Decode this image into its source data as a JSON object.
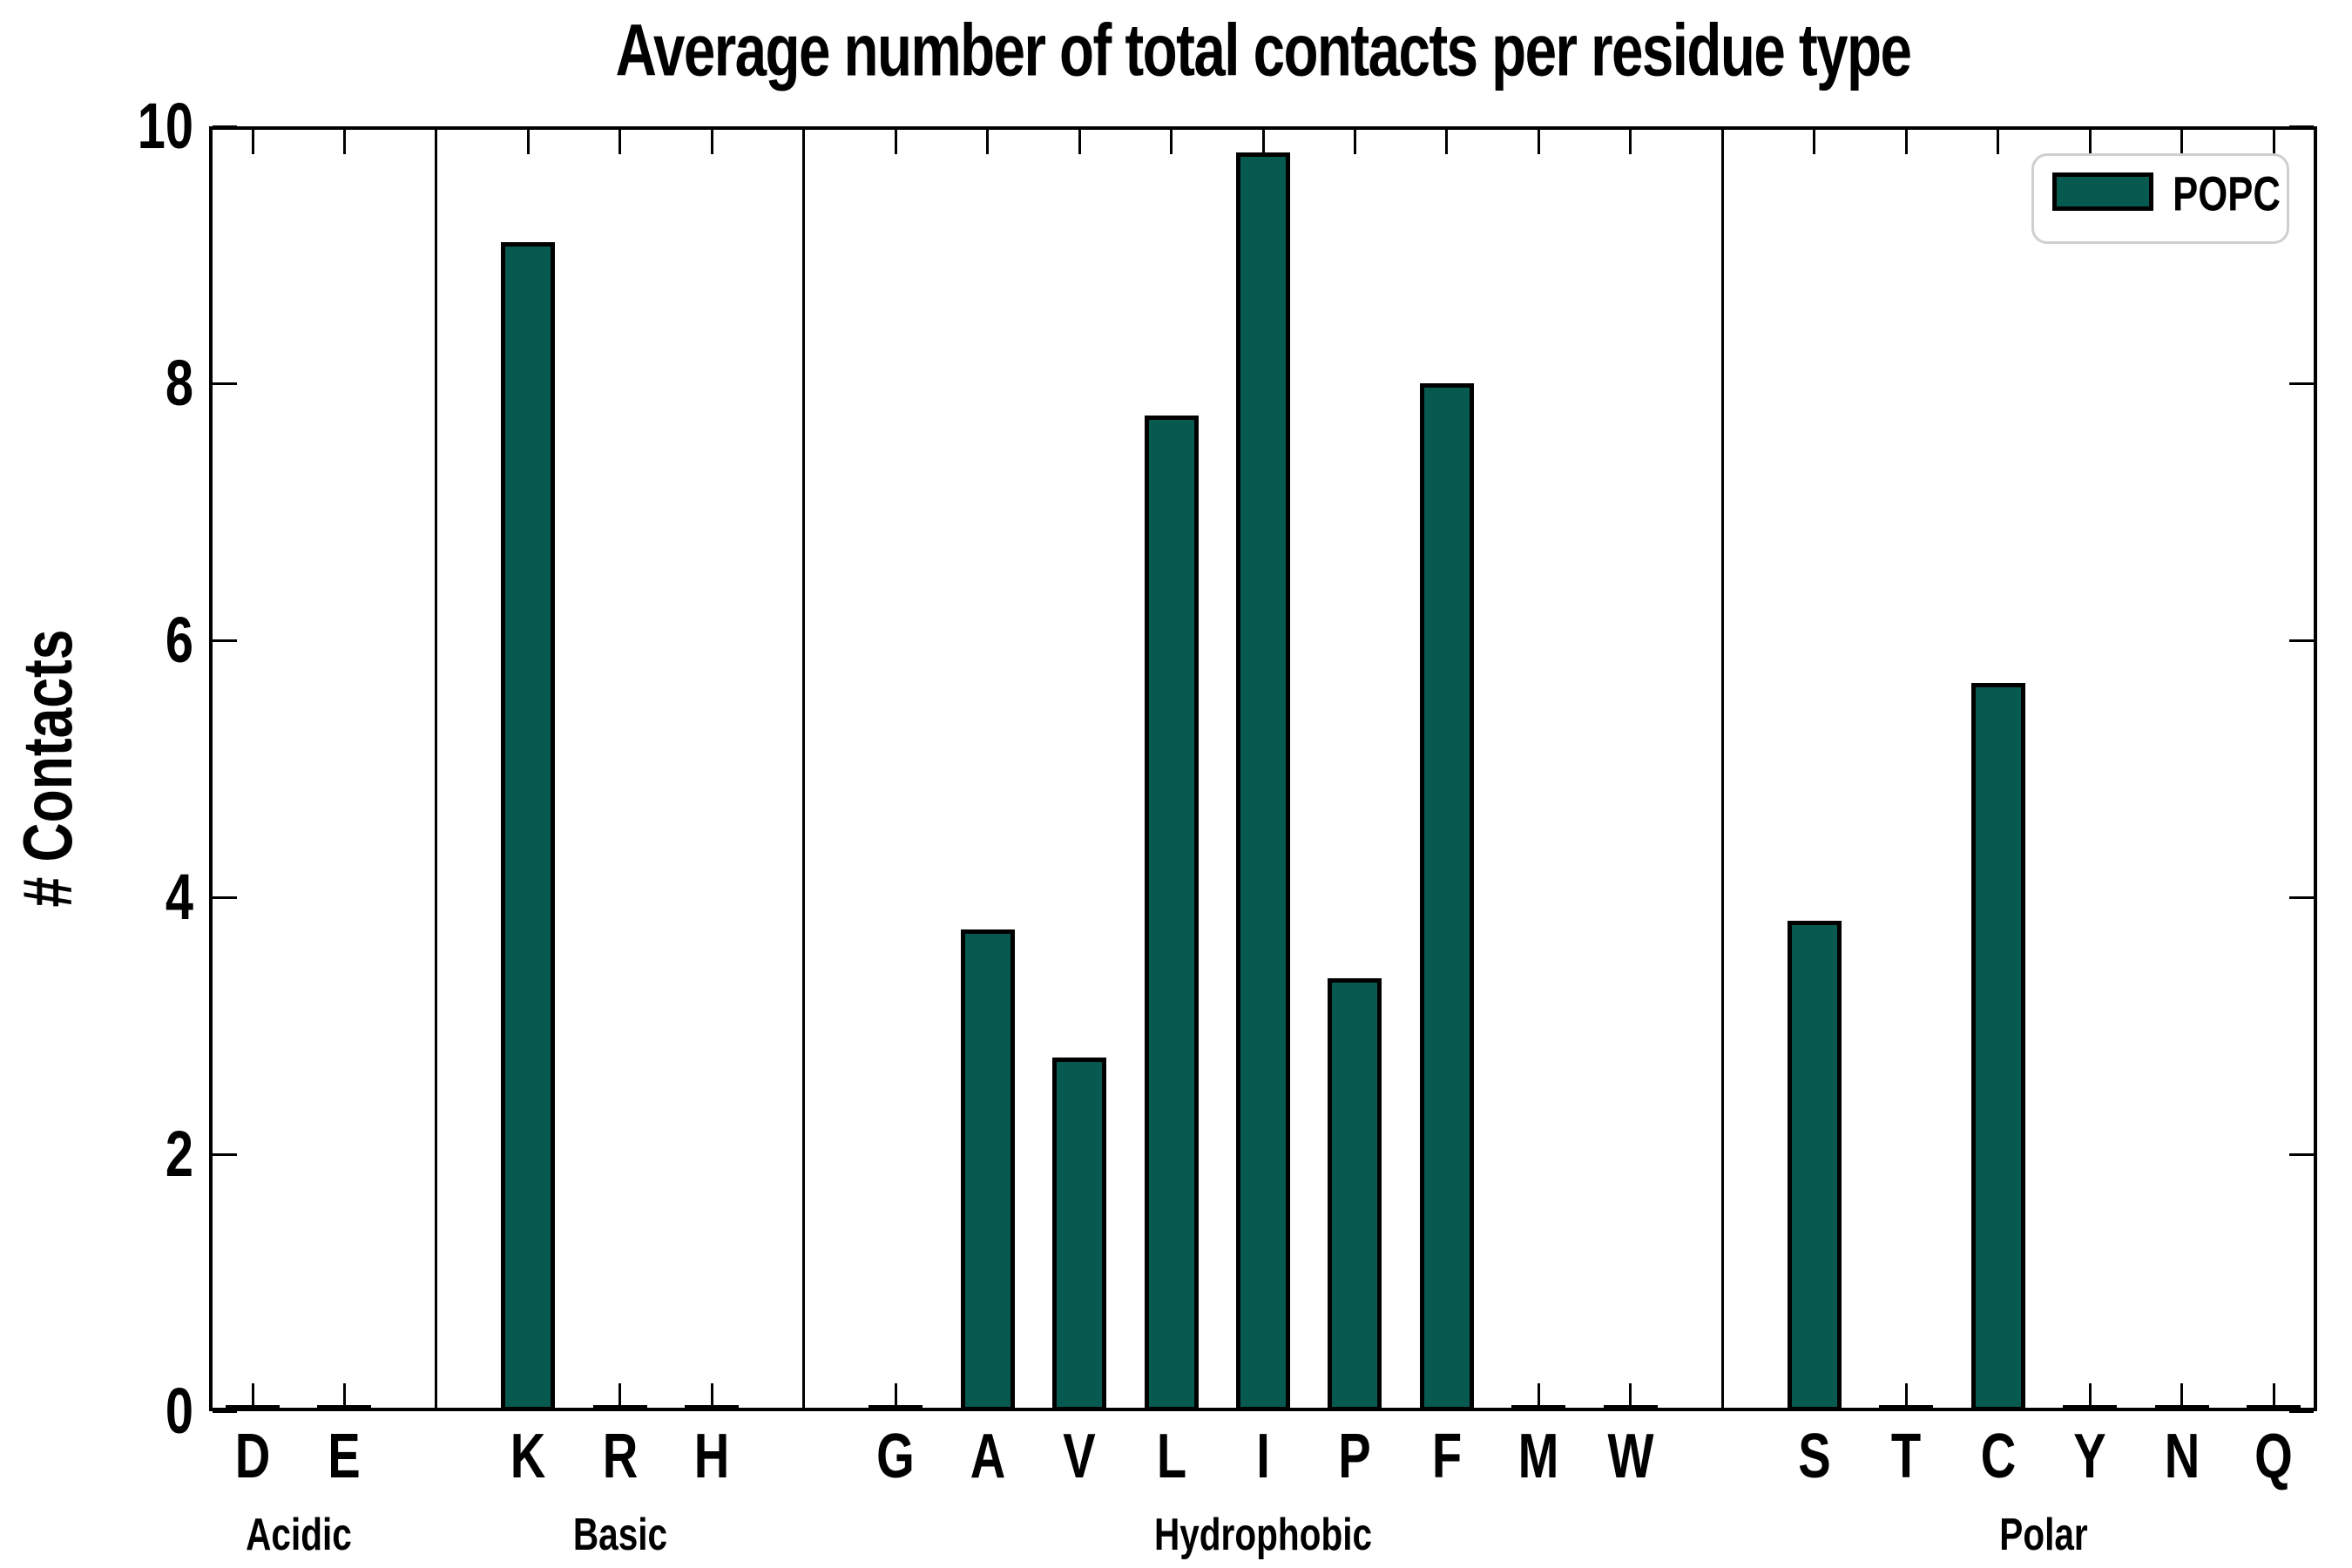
{
  "chart_data": {
    "type": "bar",
    "title": "Average number of total contacts per residue type",
    "ylabel": "# Contacts",
    "xlabel": "",
    "ylim": [
      0,
      10
    ],
    "yticks": [
      "0",
      "2",
      "4",
      "6",
      "8",
      "10"
    ],
    "grid": false,
    "legend": {
      "label": "POPC",
      "position": "upper right"
    },
    "colors": {
      "bar_fill": "#065a50",
      "bar_edge": "#000000",
      "axis": "#000000",
      "legend_border": "#cfcfcf"
    },
    "groups": [
      {
        "label": "Acidic",
        "residues": [
          "D",
          "E"
        ],
        "values": [
          0.03,
          0.03
        ]
      },
      {
        "label": "Basic",
        "residues": [
          "K",
          "R",
          "H"
        ],
        "values": [
          9.1,
          0.03,
          0.03
        ]
      },
      {
        "label": "Hydrophobic",
        "residues": [
          "G",
          "A",
          "V",
          "L",
          "I",
          "P",
          "F",
          "M",
          "W"
        ],
        "values": [
          0.03,
          3.75,
          2.75,
          7.75,
          9.8,
          3.37,
          8.0,
          0.03,
          0.03
        ]
      },
      {
        "label": "Polar",
        "residues": [
          "S",
          "T",
          "C",
          "Y",
          "N",
          "Q"
        ],
        "values": [
          3.82,
          0.03,
          5.67,
          0.03,
          0.03,
          0.03
        ]
      }
    ],
    "categories": [
      "D",
      "E",
      "K",
      "R",
      "H",
      "G",
      "A",
      "V",
      "L",
      "I",
      "P",
      "F",
      "M",
      "W",
      "S",
      "T",
      "C",
      "Y",
      "N",
      "Q"
    ],
    "values": [
      0.03,
      0.03,
      9.1,
      0.03,
      0.03,
      0.03,
      3.75,
      2.75,
      7.75,
      9.8,
      3.37,
      8.0,
      0.03,
      0.03,
      3.82,
      0.03,
      5.67,
      0.03,
      0.03,
      0.03
    ]
  }
}
